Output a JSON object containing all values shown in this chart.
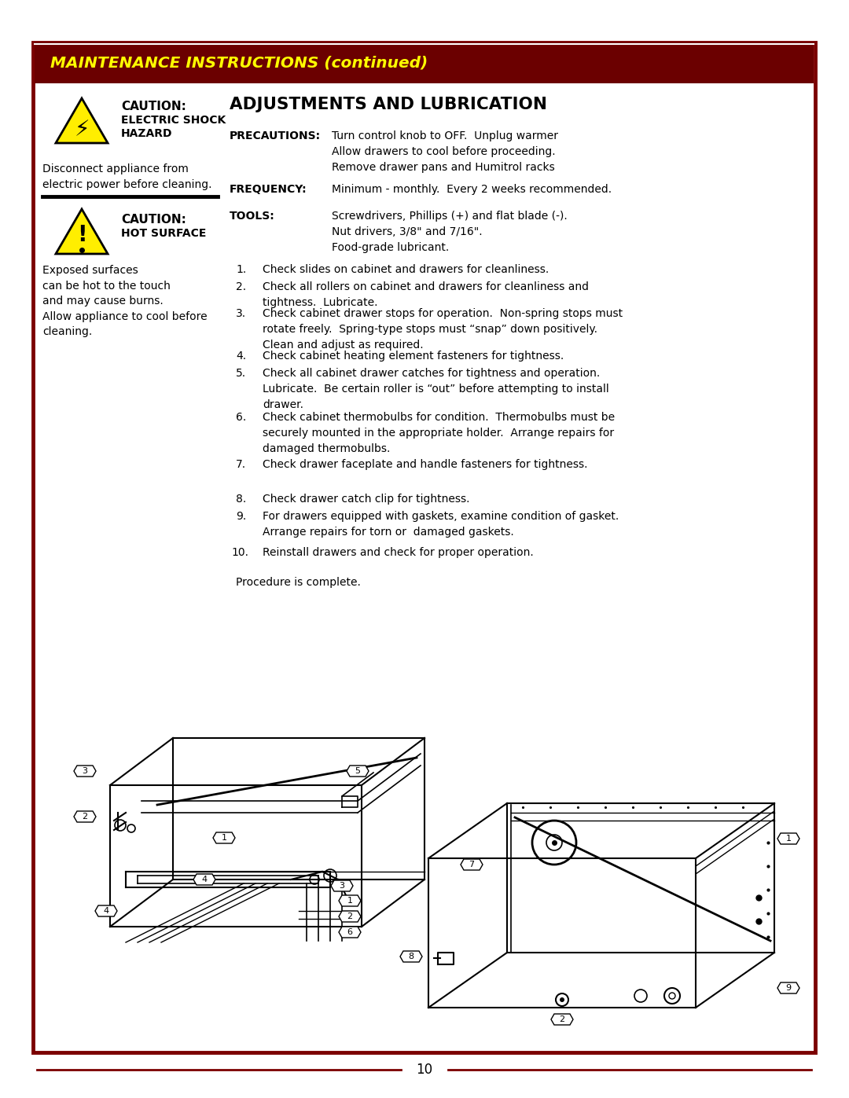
{
  "page_bg": "#ffffff",
  "border_color": "#7B0000",
  "header_bg": "#6B0000",
  "header_text": "MAINTENANCE INSTRUCTIONS (continued)",
  "header_text_color": "#FFFF00",
  "section_title": "ADJUSTMENTS AND LUBRICATION",
  "caution1_title": "CAUTION:",
  "caution1_sub": "ELECTRIC SHOCK\nHAZARD",
  "caution1_body": "Disconnect appliance from\nelectric power before cleaning.",
  "caution2_title": "CAUTION:",
  "caution2_sub": "HOT SURFACE",
  "caution2_body": "Exposed surfaces\ncan be hot to the touch\nand may cause burns.\nAllow appliance to cool before\ncleaning.",
  "precautions_label": "PRECAUTIONS:",
  "precautions_text": "Turn control knob to OFF.  Unplug warmer\nAllow drawers to cool before proceeding.\nRemove drawer pans and Humitrol racks",
  "frequency_label": "FREQUENCY:",
  "frequency_text": "Minimum - monthly.  Every 2 weeks recommended.",
  "tools_label": "TOOLS:",
  "tools_text": "Screwdrivers, Phillips (+) and flat blade (-).\nNut drivers, 3/8\" and 7/16\".\nFood-grade lubricant.",
  "steps": [
    "Check slides on cabinet and drawers for cleanliness.",
    "Check all rollers on cabinet and drawers for cleanliness and\ntightness.  Lubricate.",
    "Check cabinet drawer stops for operation.  Non-spring stops must\nrotate freely.  Spring-type stops must “snap” down positively.\nClean and adjust as required.",
    "Check cabinet heating element fasteners for tightness.",
    "Check all cabinet drawer catches for tightness and operation.\nLubricate.  Be certain roller is “out” before attempting to install\ndrawer.",
    "Check cabinet thermobulbs for condition.  Thermobulbs must be\nsecurely mounted in the appropriate holder.  Arrange repairs for\ndamaged thermobulbs.",
    "Check drawer faceplate and handle fasteners for tightness.",
    "Check drawer catch clip for tightness.",
    "For drawers equipped with gaskets, examine condition of gasket.\nArrange repairs for torn or  damaged gaskets.",
    "Reinstall drawers and check for proper operation."
  ],
  "closing": "Procedure is complete.",
  "page_number": "10",
  "text_color": "#000000",
  "divider_color": "#000000"
}
